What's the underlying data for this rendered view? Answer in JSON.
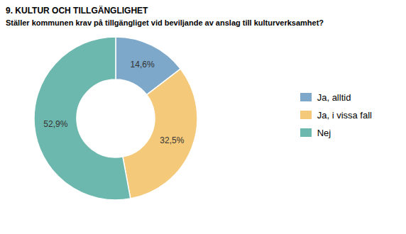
{
  "chart_data": {
    "type": "pie",
    "title": "9. KULTUR OCH TILLGÄNGLIGHET",
    "subtitle": "Ställer kommunen krav på tillgängliget vid beviljande av anslag till kulturverksamhet?",
    "categories": [
      "Ja, alltid",
      "Ja, i vissa fall",
      "Nej"
    ],
    "values": [
      14.6,
      32.5,
      52.9
    ],
    "value_labels": [
      "14,6%",
      "32,5%",
      "52,9%"
    ],
    "colors": [
      "#7da8c9",
      "#f5c97a",
      "#6db8ae"
    ],
    "data_labels": true,
    "legend": "right"
  }
}
